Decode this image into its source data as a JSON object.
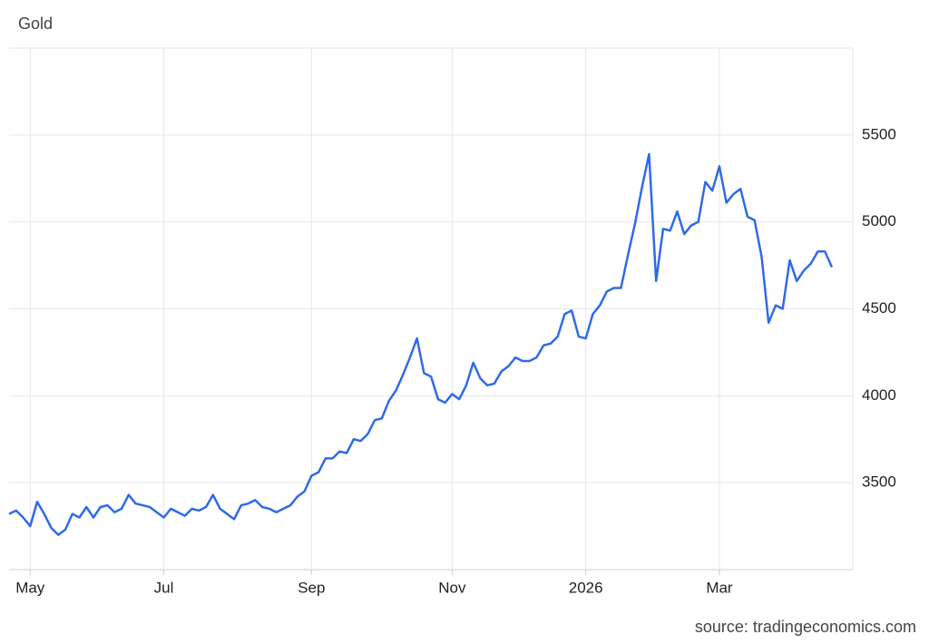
{
  "chart_data": {
    "type": "line",
    "title": "Gold",
    "source": "source: tradingeconomics.com",
    "categories": [
      null,
      null,
      null,
      "May",
      null,
      null,
      null,
      null,
      null,
      null,
      null,
      null,
      null,
      null,
      null,
      null,
      null,
      null,
      null,
      null,
      null,
      null,
      "Jul",
      null,
      null,
      null,
      null,
      null,
      null,
      null,
      null,
      null,
      null,
      null,
      null,
      null,
      null,
      null,
      null,
      null,
      null,
      null,
      null,
      "Sep",
      null,
      null,
      null,
      null,
      null,
      null,
      null,
      null,
      null,
      null,
      null,
      null,
      null,
      null,
      null,
      null,
      null,
      null,
      null,
      "Nov",
      null,
      null,
      null,
      null,
      null,
      null,
      null,
      null,
      null,
      null,
      null,
      null,
      null,
      null,
      null,
      null,
      null,
      null,
      "2026",
      null,
      null,
      null,
      null,
      null,
      null,
      null,
      null,
      null,
      null,
      null,
      null,
      null,
      null,
      null,
      null,
      null,
      null,
      "Mar",
      null,
      null,
      null,
      null,
      null,
      null,
      null,
      null,
      null,
      null,
      null,
      null,
      null,
      null,
      null,
      null
    ],
    "series": [
      {
        "name": "Gold",
        "color": "#2f6be8",
        "values": [
          3320,
          3340,
          3300,
          3250,
          3390,
          3320,
          3240,
          3200,
          3230,
          3320,
          3300,
          3360,
          3300,
          3360,
          3370,
          3330,
          3350,
          3430,
          3380,
          3370,
          3360,
          3330,
          3300,
          3350,
          3330,
          3310,
          3350,
          3340,
          3360,
          3430,
          3350,
          3320,
          3290,
          3370,
          3380,
          3400,
          3360,
          3350,
          3330,
          3350,
          3370,
          3420,
          3450,
          3540,
          3560,
          3640,
          3640,
          3680,
          3670,
          3750,
          3740,
          3780,
          3860,
          3870,
          3970,
          4030,
          4120,
          4220,
          4330,
          4130,
          4110,
          3980,
          3960,
          4010,
          3980,
          4060,
          4190,
          4100,
          4060,
          4070,
          4140,
          4170,
          4220,
          4200,
          4200,
          4220,
          4290,
          4300,
          4340,
          4470,
          4490,
          4340,
          4330,
          4470,
          4520,
          4600,
          4620,
          4620,
          4810,
          4990,
          5200,
          5390,
          4660,
          4960,
          4950,
          5060,
          4930,
          4980,
          5000,
          5230,
          5180,
          5320,
          5110,
          5160,
          5190,
          5030,
          5010,
          4800,
          4420,
          4520,
          4500,
          4780,
          4660,
          4720,
          4760,
          4830,
          4830,
          4740
        ]
      }
    ],
    "ylim": [
      3000,
      6000
    ],
    "yticks": [
      3500,
      4000,
      4500,
      5000,
      5500
    ],
    "grid": true
  }
}
